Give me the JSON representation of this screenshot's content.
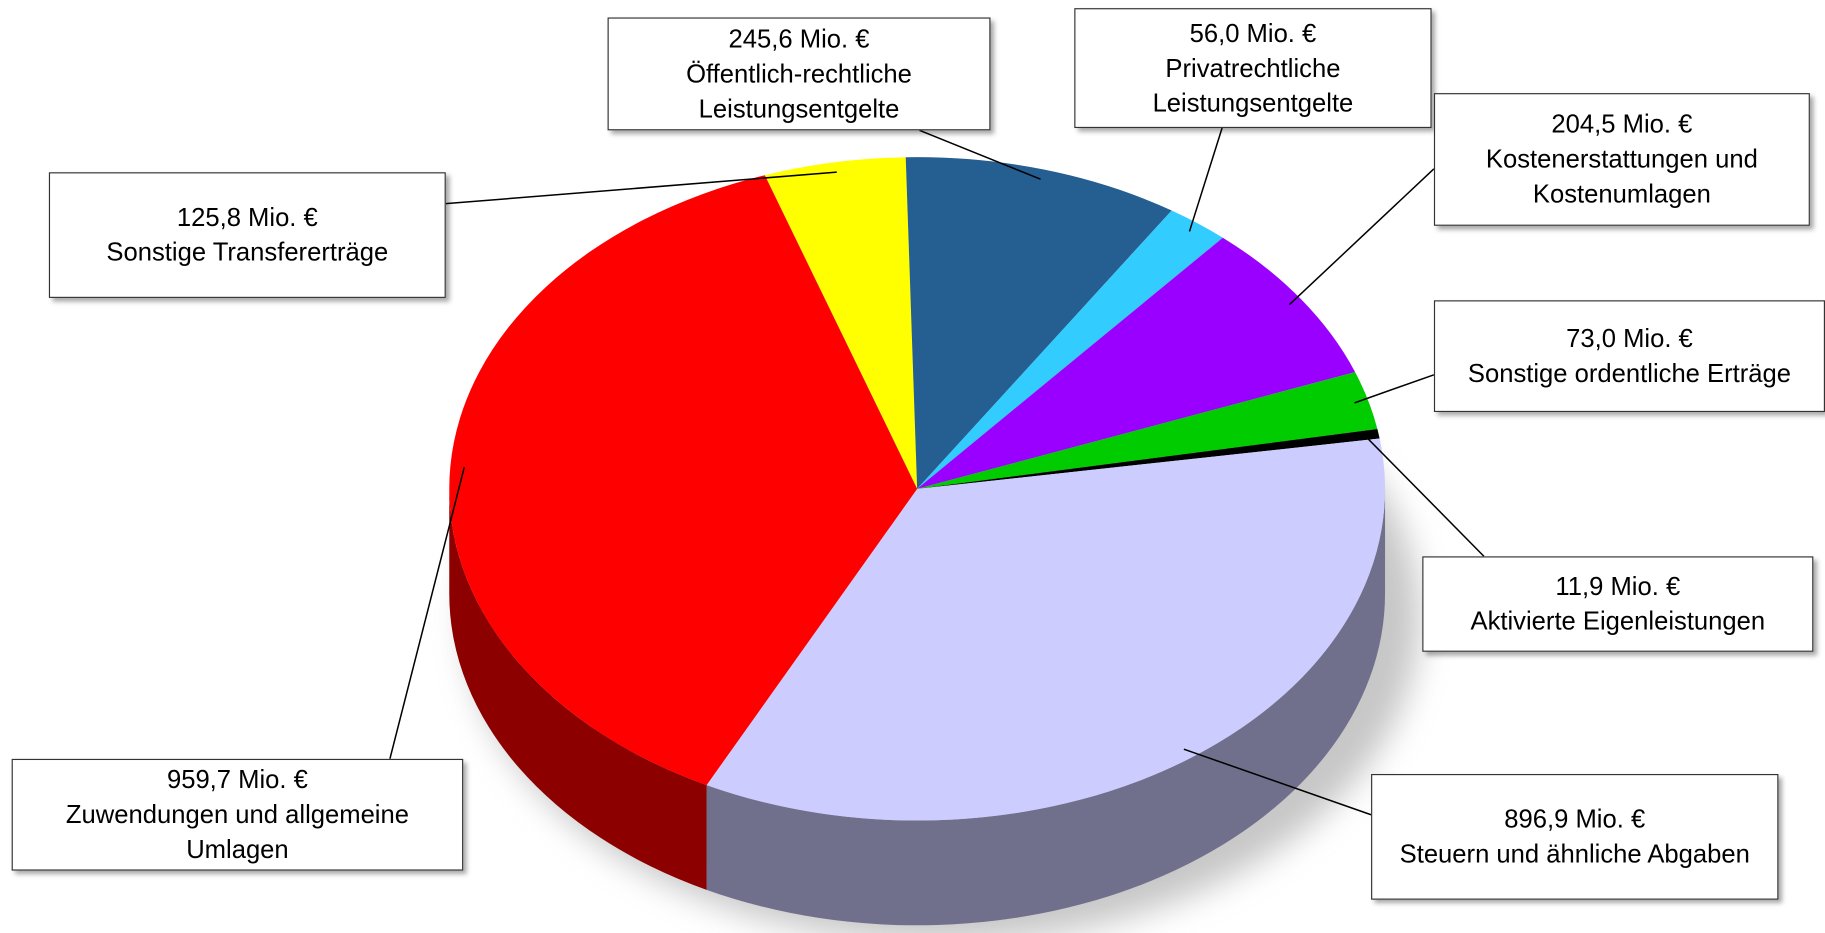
{
  "chart_data": {
    "type": "pie",
    "categories": [
      "Sonstige Transfererträge",
      "Öffentlich-rechtliche Leistungsentgelte",
      "Privatrechtliche Leistungsentgelte",
      "Kostenerstattungen und Kostenumlagen",
      "Sonstige ordentliche Erträge",
      "Aktivierte Eigenleistungen",
      "Steuern und ähnliche Abgaben",
      "Zuwendungen und allgemeine Umlagen"
    ],
    "values": [
      125.8,
      245.6,
      56.0,
      204.5,
      73.0,
      11.9,
      896.9,
      959.7
    ],
    "value_labels": [
      "125,8 Mio. €",
      "245,6 Mio. €",
      "56,0 Mio. €",
      "204,5 Mio. €",
      "73,0 Mio. €",
      "11,9 Mio. €",
      "896,9 Mio. €",
      "959,7 Mio. €"
    ],
    "colors": [
      "#ffff00",
      "#255e91",
      "#33ccff",
      "#9900ff",
      "#00cc00",
      "#000000",
      "#ccccff",
      "#ff0000"
    ]
  }
}
